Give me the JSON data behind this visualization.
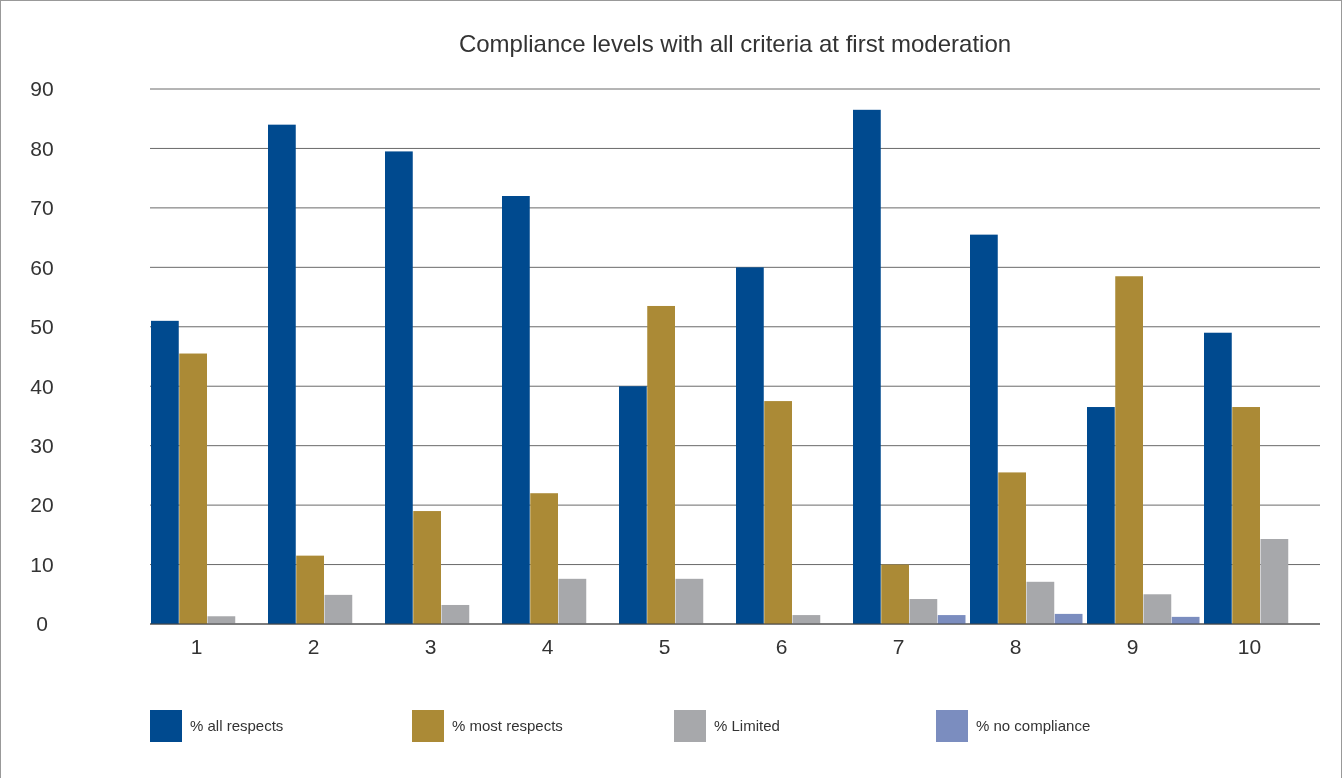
{
  "chart_data": {
    "type": "bar",
    "title": "Compliance levels with all criteria at first moderation",
    "categories": [
      "1",
      "2",
      "3",
      "4",
      "5",
      "6",
      "7",
      "8",
      "9",
      "10"
    ],
    "series": [
      {
        "name": "% all respects",
        "color": "#004a8f",
        "values": [
          51,
          84,
          79.5,
          72,
          40,
          60,
          86.5,
          65.5,
          36.5,
          49
        ]
      },
      {
        "name": "% most respects",
        "color": "#ab8a36",
        "values": [
          45.5,
          11.5,
          19,
          22,
          53.5,
          37.5,
          10,
          25.5,
          58.5,
          36.5
        ]
      },
      {
        "name": "% Limited",
        "color": "#a7a8ab",
        "values": [
          1.3,
          4.9,
          3.2,
          7.6,
          7.6,
          1.5,
          4.2,
          7.1,
          5,
          14.3
        ]
      },
      {
        "name": "% no compliance",
        "color": "#7b8dbf",
        "values": [
          null,
          null,
          null,
          null,
          null,
          null,
          1.5,
          1.7,
          1.2,
          null
        ]
      }
    ],
    "ylim": [
      0,
      90
    ],
    "yticks": [
      0,
      10,
      20,
      30,
      40,
      50,
      60,
      70,
      80,
      90
    ],
    "grid": "y",
    "legend": "bottom"
  }
}
